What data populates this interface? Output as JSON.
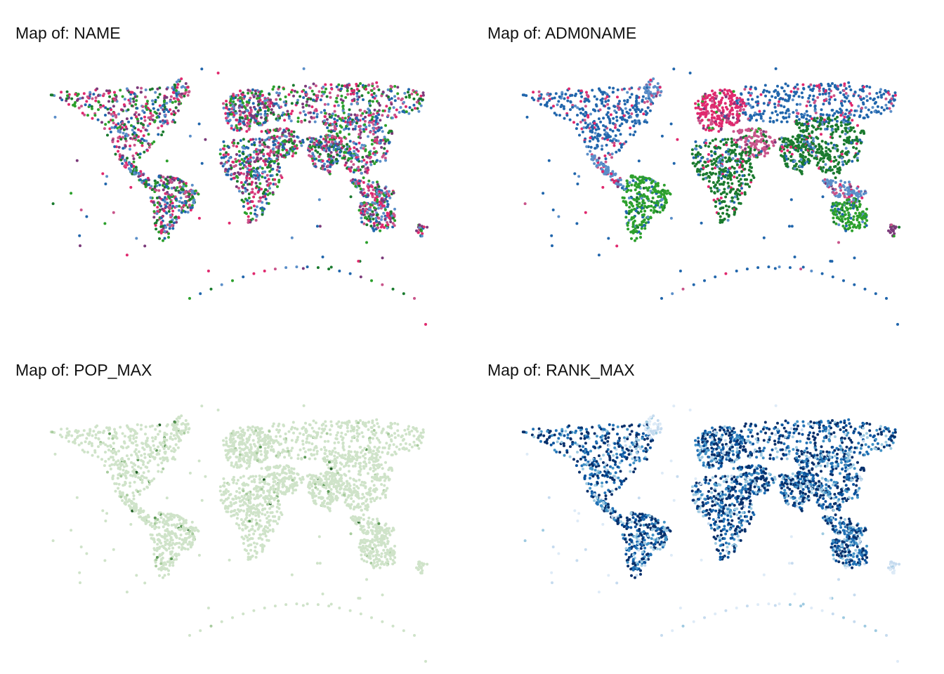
{
  "panels": [
    {
      "title": "Map of: NAME",
      "style": "categorical",
      "palette": [
        "#2166ac",
        "#5b8fc9",
        "#e0296e",
        "#c9548a",
        "#7b3a7a",
        "#2ca02c",
        "#1a7a2e"
      ],
      "opacity": 1.0
    },
    {
      "title": "Map of: ADM0NAME",
      "style": "regional",
      "palette": [
        "#2166ac",
        "#5b8fc9",
        "#e0296e",
        "#c9548a",
        "#7b3a7a",
        "#2ca02c",
        "#1a7a2e"
      ],
      "opacity": 1.0
    },
    {
      "title": "Map of: POP_MAX",
      "style": "sequential-light",
      "palette": [
        "#cfe3c9",
        "#cfe3c9",
        "#cfe3c9",
        "#a8cc9e",
        "#5d9a57",
        "#1f5e24"
      ],
      "opacity": 1.0
    },
    {
      "title": "Map of: RANK_MAX",
      "style": "sequential-dense",
      "palette": [
        "#deebf7",
        "#c6dbef",
        "#9ecae1",
        "#4292c6",
        "#2171b5",
        "#08519c",
        "#08306b"
      ],
      "opacity": 1.0
    }
  ]
}
